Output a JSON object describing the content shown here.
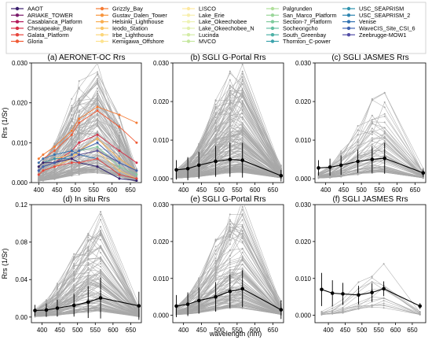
{
  "figure": {
    "shared_xlabel": "wavelength (nm)",
    "shared_ylabel": "Rrs (1/Sr)"
  },
  "legend": {
    "entries": [
      {
        "label": "AAOT",
        "color": "#3b1f6e"
      },
      {
        "label": "ARIAKE_TOWER",
        "color": "#7a1a6a"
      },
      {
        "label": "Casablanca_Platform",
        "color": "#b3185a"
      },
      {
        "label": "Chesapeake_Bay",
        "color": "#d72e45"
      },
      {
        "label": "Galata_Platform",
        "color": "#e8453c"
      },
      {
        "label": "Gloria",
        "color": "#f05a34"
      },
      {
        "label": "Grizzly_Bay",
        "color": "#f57a33"
      },
      {
        "label": "Gustav_Dalen_Tower",
        "color": "#f8953d"
      },
      {
        "label": "Helsinki_Lighthouse",
        "color": "#f9ae4f"
      },
      {
        "label": "Ieodo_Station",
        "color": "#fbc563"
      },
      {
        "label": "Irbe_Lighthouse",
        "color": "#fcd679"
      },
      {
        "label": "Kemigawa_Offshore",
        "color": "#fde38f"
      },
      {
        "label": "LISCO",
        "color": "#fde9a1"
      },
      {
        "label": "Lake_Erie",
        "color": "#f7efae"
      },
      {
        "label": "Lake_Okeechobee",
        "color": "#eef3b4"
      },
      {
        "label": "Lake_Okeechobee_N",
        "color": "#e2f0ae"
      },
      {
        "label": "Lucinda",
        "color": "#d4eca6"
      },
      {
        "label": "MVCO",
        "color": "#c5e79f"
      },
      {
        "label": "Palgrunden",
        "color": "#b1df9c"
      },
      {
        "label": "San_Marco_Platform",
        "color": "#9ad69a"
      },
      {
        "label": "Section-7_Platform",
        "color": "#7fcb9d"
      },
      {
        "label": "Socheongcho",
        "color": "#66bfa1"
      },
      {
        "label": "South_Greenbay",
        "color": "#4cb1a6"
      },
      {
        "label": "Thornton_C-power",
        "color": "#3aa2ac"
      },
      {
        "label": "USC_SEAPRISM",
        "color": "#2f93ae"
      },
      {
        "label": "USC_SEAPRISM_2",
        "color": "#2c84b0"
      },
      {
        "label": "Venise",
        "color": "#3273b2"
      },
      {
        "label": "WaveCIS_Site_CSI_6",
        "color": "#4063b0"
      },
      {
        "label": "Zeebrugge-MOW1",
        "color": "#524da6"
      }
    ]
  },
  "chart_data": [
    {
      "type": "line",
      "title": "(a) AERONET-OC Rrs",
      "xlabel": "",
      "ylabel": "Rrs (1/Sr)",
      "xlim": [
        380,
        680
      ],
      "ylim": [
        0,
        0.03
      ],
      "xticks": [
        400,
        450,
        500,
        550,
        600,
        650
      ],
      "yticks": [
        0.0,
        0.01,
        0.02,
        0.03
      ],
      "ytick_labels": [
        "0.000",
        "0.010",
        "0.020",
        "0.030"
      ],
      "x": [
        400,
        412,
        443,
        490,
        510,
        560,
        620,
        667
      ],
      "background_series": {
        "color": "#a8a8a8",
        "count": 130,
        "peak_median": 0.009,
        "peak_max": 0.027
      },
      "series": [
        {
          "name": "Gloria",
          "color": "#f05a34",
          "values": [
            0.005,
            0.006,
            0.008,
            0.012,
            0.015,
            0.018,
            0.014,
            0.01
          ]
        },
        {
          "name": "Grizzly_Bay",
          "color": "#f57a33",
          "values": [
            0.006,
            0.007,
            0.009,
            0.013,
            0.016,
            0.019,
            0.017,
            0.015
          ]
        },
        {
          "name": "Chesapeake_Bay",
          "color": "#d72e45",
          "values": [
            0.003,
            0.004,
            0.005,
            0.008,
            0.01,
            0.012,
            0.008,
            0.005
          ]
        },
        {
          "name": "Helsinki_Lighthouse",
          "color": "#f9ae4f",
          "values": [
            0.002,
            0.003,
            0.004,
            0.006,
            0.008,
            0.011,
            0.006,
            0.003
          ]
        },
        {
          "name": "Ieodo_Station",
          "color": "#fbc563",
          "values": [
            0.004,
            0.005,
            0.006,
            0.007,
            0.007,
            0.008,
            0.003,
            0.001
          ]
        },
        {
          "name": "Section-7_Platform",
          "color": "#7fcb9d",
          "values": [
            0.003,
            0.004,
            0.005,
            0.007,
            0.008,
            0.009,
            0.004,
            0.002
          ]
        },
        {
          "name": "USC_SEAPRISM",
          "color": "#2f93ae",
          "values": [
            0.004,
            0.005,
            0.006,
            0.006,
            0.005,
            0.004,
            0.001,
            0.0005
          ]
        },
        {
          "name": "Venise",
          "color": "#3273b2",
          "values": [
            0.005,
            0.006,
            0.007,
            0.008,
            0.007,
            0.006,
            0.002,
            0.001
          ]
        },
        {
          "name": "Zeebrugge-MOW1",
          "color": "#524da6",
          "values": [
            0.003,
            0.004,
            0.005,
            0.006,
            0.007,
            0.008,
            0.005,
            0.003
          ]
        },
        {
          "name": "AAOT",
          "color": "#3b1f6e",
          "values": [
            0.004,
            0.005,
            0.005,
            0.006,
            0.005,
            0.004,
            0.001,
            0.0005
          ]
        },
        {
          "name": "Galata_Platform",
          "color": "#e8453c",
          "values": [
            0.002,
            0.003,
            0.004,
            0.005,
            0.005,
            0.006,
            0.002,
            0.001
          ]
        },
        {
          "name": "WaveCIS_Site_CSI_6",
          "color": "#4063b0",
          "values": [
            0.003,
            0.004,
            0.005,
            0.007,
            0.008,
            0.01,
            0.005,
            0.003
          ]
        }
      ]
    },
    {
      "type": "line",
      "title": "(b) SGLI G-Portal Rrs",
      "xlabel": "",
      "ylabel": "",
      "xlim": [
        370,
        680
      ],
      "ylim": [
        -0.001,
        0.03
      ],
      "xticks": [
        400,
        450,
        500,
        550,
        600,
        650
      ],
      "yticks": [
        0.0,
        0.01,
        0.02,
        0.03
      ],
      "ytick_labels": [
        "0.000",
        "0.010",
        "0.020",
        "0.030"
      ],
      "x": [
        380,
        412,
        443,
        490,
        530,
        565,
        673
      ],
      "background_series": {
        "color": "#a8a8a8",
        "count": 180,
        "peak_median": 0.006,
        "peak_max": 0.027
      },
      "mean": [
        0.0023,
        0.0026,
        0.0035,
        0.0045,
        0.005,
        0.0048,
        0.0008
      ],
      "err": [
        0.0025,
        0.003,
        0.0035,
        0.004,
        0.0045,
        0.0045,
        0.0015
      ]
    },
    {
      "type": "line",
      "title": "(c) SGLI JASMES Rrs",
      "xlabel": "",
      "ylabel": "",
      "xlim": [
        370,
        680
      ],
      "ylim": [
        -0.001,
        0.03
      ],
      "xticks": [
        400,
        450,
        500,
        550,
        600,
        650
      ],
      "yticks": [
        0.0,
        0.01,
        0.02,
        0.03
      ],
      "ytick_labels": [
        "0.000",
        "0.010",
        "0.020",
        "0.030"
      ],
      "x": [
        380,
        412,
        443,
        490,
        530,
        565,
        673
      ],
      "background_series": {
        "color": "#a8a8a8",
        "count": 70,
        "peak_median": 0.006,
        "peak_max": 0.021
      },
      "mean": [
        0.0028,
        0.003,
        0.0035,
        0.0045,
        0.005,
        0.0053,
        0.0015
      ],
      "err": [
        0.002,
        0.0022,
        0.0025,
        0.003,
        0.0035,
        0.004,
        0.001
      ]
    },
    {
      "type": "line",
      "title": "(d) In situ Rrs",
      "xlabel": "",
      "ylabel": "Rrs (1/Sr)",
      "xlim": [
        370,
        680
      ],
      "ylim": [
        -0.006,
        0.12
      ],
      "xticks": [
        400,
        450,
        500,
        550,
        600,
        650
      ],
      "yticks": [
        0.0,
        0.04,
        0.08,
        0.12
      ],
      "ytick_labels": [
        "0.00",
        "0.04",
        "0.08",
        "0.12"
      ],
      "x": [
        380,
        412,
        443,
        490,
        530,
        565,
        673
      ],
      "background_series": {
        "color": "#a8a8a8",
        "count": 110,
        "peak_median": 0.02,
        "peak_max": 0.095
      },
      "mean": [
        0.007,
        0.0075,
        0.0095,
        0.0125,
        0.016,
        0.0205,
        0.012
      ],
      "err": [
        0.006,
        0.007,
        0.009,
        0.012,
        0.017,
        0.022,
        0.015
      ]
    },
    {
      "type": "line",
      "title": "(e) SGLI G-Portal Rrs",
      "xlabel": "wavelength (nm)",
      "ylabel": "",
      "xlim": [
        370,
        680
      ],
      "ylim": [
        -0.002,
        0.03
      ],
      "xticks": [
        400,
        450,
        500,
        550,
        600,
        650
      ],
      "yticks": [
        0.0,
        0.01,
        0.02,
        0.03
      ],
      "ytick_labels": [
        "0.000",
        "0.010",
        "0.020",
        "0.030"
      ],
      "x": [
        380,
        412,
        443,
        490,
        530,
        565,
        673
      ],
      "background_series": {
        "color": "#a8a8a8",
        "count": 110,
        "peak_median": 0.007,
        "peak_max": 0.028
      },
      "mean": [
        0.0025,
        0.003,
        0.004,
        0.005,
        0.0065,
        0.0072,
        0.0015
      ],
      "err": [
        0.003,
        0.0032,
        0.0035,
        0.004,
        0.0045,
        0.005,
        0.0025
      ]
    },
    {
      "type": "line",
      "title": "(f) SGLI JASMES Rrs",
      "xlabel": "",
      "ylabel": "",
      "xlim": [
        360,
        690
      ],
      "ylim": [
        -0.002,
        0.03
      ],
      "xticks": [
        400,
        450,
        500,
        550,
        600,
        650
      ],
      "yticks": [
        0.0,
        0.01,
        0.02,
        0.03
      ],
      "ytick_labels": [
        "0.000",
        "0.010",
        "0.020",
        "0.030"
      ],
      "x": [
        380,
        412,
        443,
        490,
        530,
        565,
        673
      ],
      "background_series": {
        "color": "#a8a8a8",
        "count": 14,
        "peak_median": 0.007,
        "peak_max": 0.013
      },
      "mean": [
        0.007,
        0.006,
        0.0058,
        0.0055,
        0.0062,
        0.0072,
        0.0025
      ],
      "err": [
        0.0045,
        0.0035,
        0.003,
        0.0025,
        0.0025,
        0.002,
        0.0008
      ]
    }
  ]
}
